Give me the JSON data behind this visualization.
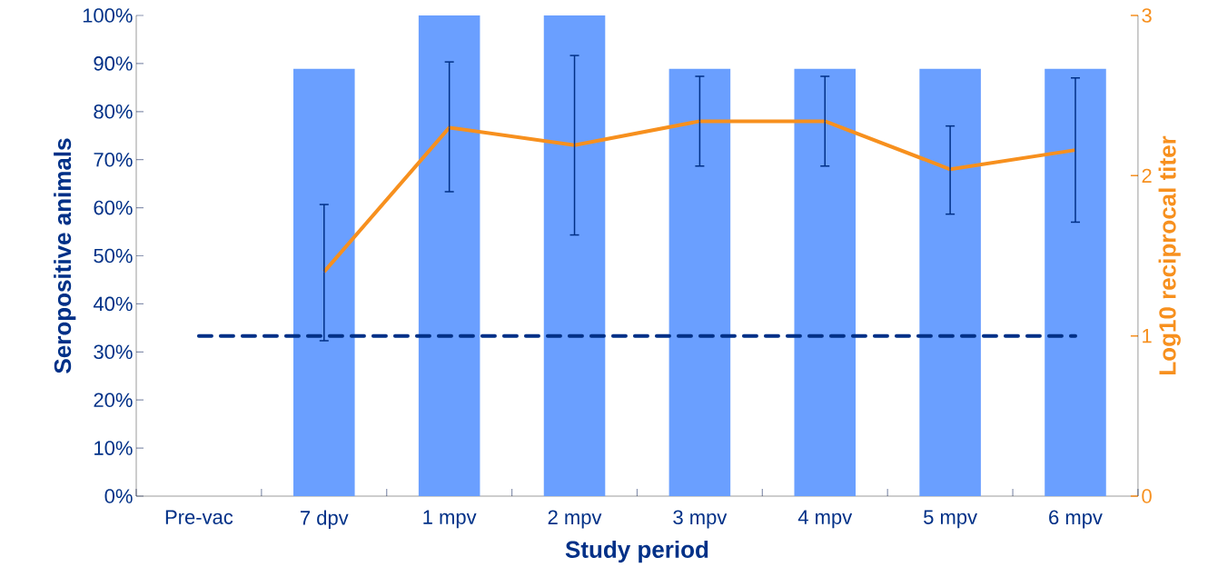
{
  "chart_data": {
    "type": "bar",
    "xlabel": "Study period",
    "ylabel": "Seropositive animals",
    "y2label": "Log10 reciprocal titer",
    "categories": [
      "Pre-vac",
      "7 dpv",
      "1 mpv",
      "2 mpv",
      "3 mpv",
      "4 mpv",
      "5 mpv",
      "6 mpv"
    ],
    "series": [
      {
        "color": "#6a9fff",
        "values": [
          0,
          88.9,
          100,
          100,
          88.9,
          88.9,
          88.9,
          88.9
        ]
      },
      {
        "type": "line",
        "axis": "y2",
        "color": "#f7901e",
        "values": [
          null,
          1.4,
          2.3,
          2.19,
          2.34,
          2.34,
          2.04,
          2.16
        ],
        "errors": [
          null,
          [
            0.97,
            1.82
          ],
          [
            1.9,
            2.71
          ],
          [
            1.63,
            2.75
          ],
          [
            2.06,
            2.62
          ],
          [
            2.06,
            2.62
          ],
          [
            1.76,
            2.31
          ],
          [
            1.71,
            2.61
          ]
        ]
      }
    ],
    "ylim": [
      0,
      100
    ],
    "yticks": [
      {
        "value": 0,
        "label": "0%"
      },
      {
        "value": 10,
        "label": "10%"
      },
      {
        "value": 20,
        "label": "20%"
      },
      {
        "value": 30,
        "label": "30%"
      },
      {
        "value": 40,
        "label": "40%"
      },
      {
        "value": 50,
        "label": "50%"
      },
      {
        "value": 60,
        "label": "60%"
      },
      {
        "value": 70,
        "label": "70%"
      },
      {
        "value": 80,
        "label": "80%"
      },
      {
        "value": 90,
        "label": "90%"
      },
      {
        "value": 100,
        "label": "100%"
      }
    ],
    "y2lim": [
      0,
      3
    ],
    "y2ticks": [
      0,
      1,
      2,
      3
    ],
    "ref_lines": [
      {
        "axis": "y2",
        "value": 1,
        "color": "#003087",
        "line_style": "dashed"
      }
    ]
  }
}
